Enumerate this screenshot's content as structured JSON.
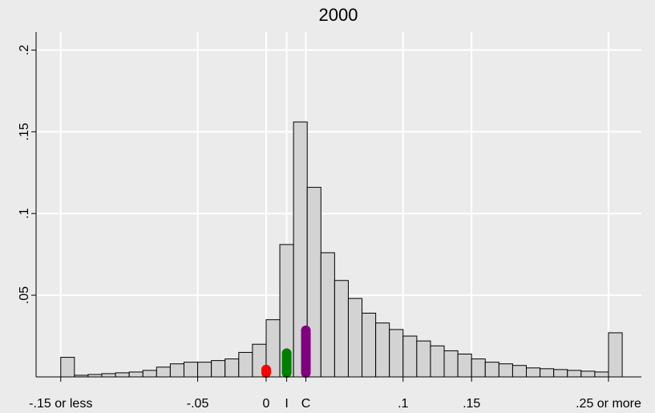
{
  "chart_data": {
    "type": "histogram",
    "title": "2000",
    "bins": [
      -0.15,
      -0.14,
      -0.13,
      -0.12,
      -0.11,
      -0.1,
      -0.09,
      -0.08,
      -0.07,
      -0.06,
      -0.05,
      -0.04,
      -0.03,
      -0.02,
      -0.01,
      0,
      0.01,
      0.02,
      0.03,
      0.04,
      0.05,
      0.06,
      0.07,
      0.08,
      0.09,
      0.1,
      0.11,
      0.12,
      0.13,
      0.14,
      0.15,
      0.16,
      0.17,
      0.18,
      0.19,
      0.2,
      0.21,
      0.22,
      0.23,
      0.24,
      0.25,
      0.26
    ],
    "values": [
      0.012,
      0.001,
      0.0015,
      0.002,
      0.0025,
      0.003,
      0.004,
      0.006,
      0.008,
      0.009,
      0.009,
      0.01,
      0.011,
      0.015,
      0.02,
      0.035,
      0.081,
      0.156,
      0.116,
      0.076,
      0.059,
      0.048,
      0.039,
      0.033,
      0.029,
      0.025,
      0.022,
      0.019,
      0.016,
      0.014,
      0.011,
      0.009,
      0.008,
      0.007,
      0.0055,
      0.005,
      0.0045,
      0.004,
      0.0035,
      0.003,
      0.027
    ],
    "color": "#d3d3d3",
    "markers": [
      {
        "x": 0,
        "value": 0.007,
        "color": "#ff0000"
      },
      {
        "x": 0.015,
        "value": 0.017,
        "color": "#007f00"
      },
      {
        "x": 0.029,
        "value": 0.031,
        "color": "#800080"
      }
    ],
    "xlim": [
      -0.168,
      0.274
    ],
    "ylim": [
      0,
      0.211
    ],
    "xticks": [
      {
        "value": -0.15,
        "label": "-.15 or less"
      },
      {
        "value": -0.05,
        "label": "-.05"
      },
      0,
      {
        "value": 0.015,
        "label": "I"
      },
      {
        "value": 0.029,
        "label": "C"
      },
      {
        "value": 0.1,
        "label": ".1"
      },
      {
        "value": 0.15,
        "label": ".15"
      },
      {
        "value": 0.25,
        "label": ".25 or more"
      }
    ],
    "yticks": [
      {
        "value": 0.05,
        "label": ".05"
      },
      {
        "value": 0.1,
        "label": ".1"
      },
      {
        "value": 0.15,
        "label": ".15"
      },
      {
        "value": 0.2,
        "label": ".2"
      }
    ],
    "grid": true
  }
}
